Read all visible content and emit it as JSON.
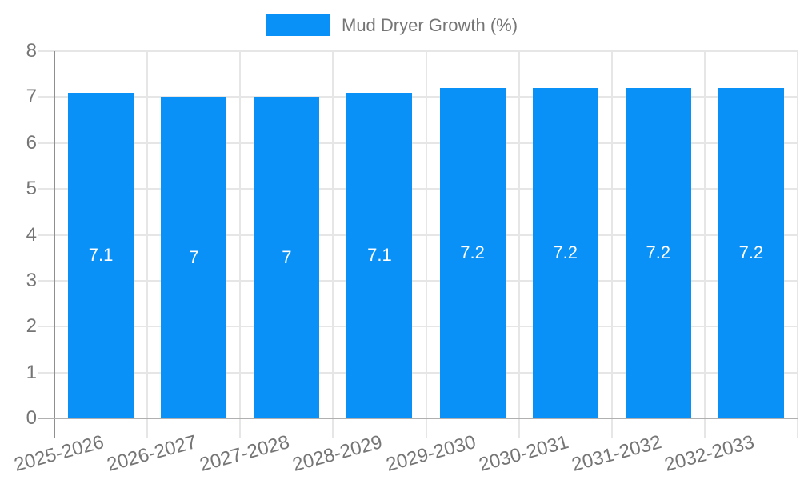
{
  "chart_data": {
    "type": "bar",
    "title": "",
    "legend": {
      "label": "Mud Dryer Growth (%)",
      "position": "top"
    },
    "categories": [
      "2025-2026",
      "2026-2027",
      "2027-2028",
      "2028-2029",
      "2029-2030",
      "2030-2031",
      "2031-2032",
      "2032-2033"
    ],
    "series": [
      {
        "name": "Mud Dryer Growth (%)",
        "values": [
          7.1,
          7,
          7,
          7.1,
          7.2,
          7.2,
          7.2,
          7.2
        ],
        "display_values": [
          "7.1",
          "7",
          "7",
          "7.1",
          "7.2",
          "7.2",
          "7.2",
          "7.2"
        ],
        "color": "#0991f7"
      }
    ],
    "ylim": [
      0,
      8
    ],
    "y_ticks": [
      0,
      1,
      2,
      3,
      4,
      5,
      6,
      7,
      8
    ],
    "grid": true,
    "xlabel": "",
    "ylabel": "",
    "x_label_rotation_deg": -15,
    "colors": {
      "bar": "#0991f7",
      "gridline": "#e6e6e6",
      "y_axis_line": "#8f8f8f",
      "baseline": "#b0b0b0",
      "axis_text": "#757575",
      "bar_label_text": "#ffffff"
    }
  }
}
